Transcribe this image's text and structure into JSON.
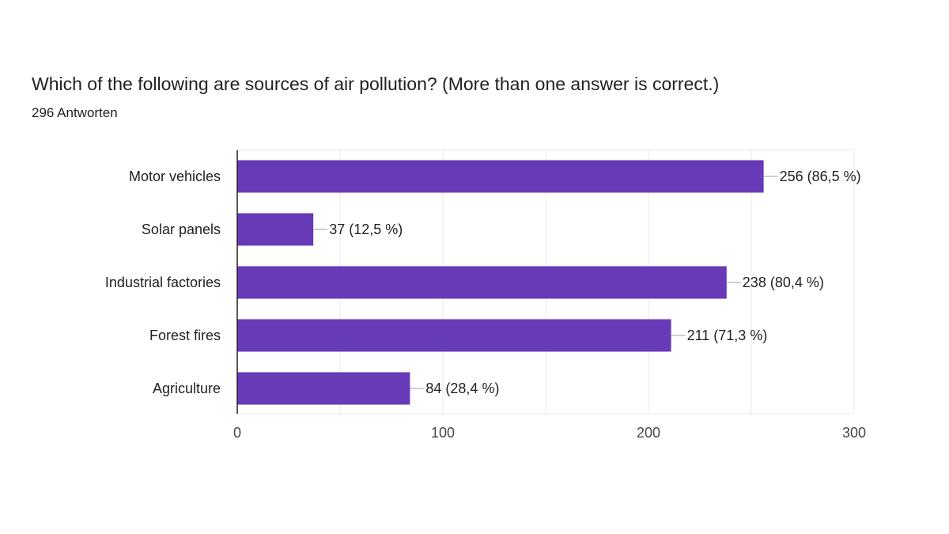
{
  "question": {
    "title": "Which of the following are sources of air pollution? (More than one answer is correct.)",
    "response_count": "296 Antworten"
  },
  "colors": {
    "bar": "#673ab7",
    "gridline": "#e8e8e8",
    "axis": "#202124",
    "leader": "#9e9e9e"
  },
  "chart_data": {
    "type": "bar",
    "orientation": "horizontal",
    "title": "Which of the following are sources of air pollution? (More than one answer is correct.)",
    "categories": [
      "Motor vehicles",
      "Solar panels",
      "Industrial factories",
      "Forest fires",
      "Agriculture"
    ],
    "values": [
      256,
      37,
      238,
      211,
      84
    ],
    "data_labels": [
      "256 (86,5 %)",
      "37 (12,5 %)",
      "238 (80,4 %)",
      "211 (71,3 %)",
      "84 (28,4 %)"
    ],
    "xlim": [
      0,
      300
    ],
    "x_ticks": [
      0,
      100,
      200,
      300
    ],
    "x_tick_labels": [
      "0",
      "100",
      "200",
      "300"
    ],
    "grid": true,
    "legend": "none"
  }
}
